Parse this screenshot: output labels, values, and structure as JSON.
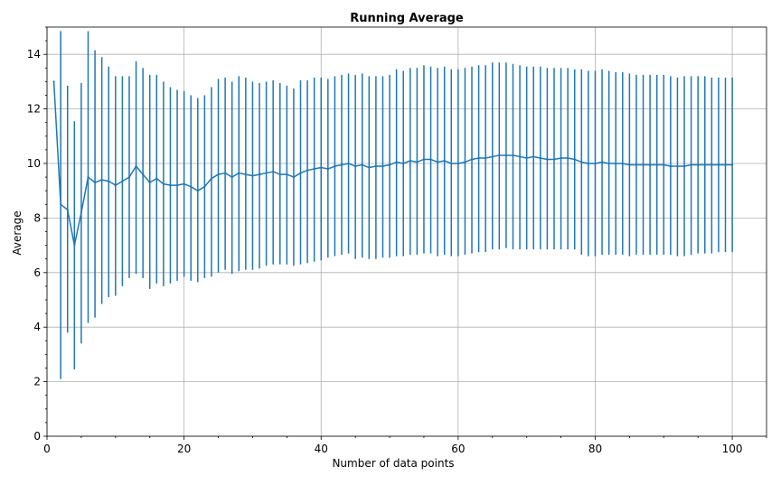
{
  "chart_data": {
    "type": "line",
    "title": "Running Average",
    "xlabel": "Number of data points",
    "ylabel": "Average",
    "xlim": [
      0,
      105
    ],
    "ylim": [
      0,
      15
    ],
    "x_ticks": [
      0,
      20,
      40,
      60,
      80,
      100
    ],
    "y_ticks": [
      0,
      2,
      4,
      6,
      8,
      10,
      12,
      14
    ],
    "x_tick_labels": [
      "0",
      "20",
      "40",
      "60",
      "80",
      "100"
    ],
    "y_tick_labels": [
      "0",
      "2",
      "4",
      "6",
      "8",
      "10",
      "12",
      "14"
    ],
    "grid": true,
    "color": "#1f77b4",
    "series": [
      {
        "x": [
          1,
          2,
          3,
          4,
          5,
          6,
          7,
          8,
          9,
          10,
          11,
          12,
          13,
          14,
          15,
          16,
          17,
          18,
          19,
          20,
          21,
          22,
          23,
          24,
          25,
          26,
          27,
          28,
          29,
          30,
          31,
          32,
          33,
          34,
          35,
          36,
          37,
          38,
          39,
          40,
          41,
          42,
          43,
          44,
          45,
          46,
          47,
          48,
          49,
          50,
          51,
          52,
          53,
          54,
          55,
          56,
          57,
          58,
          59,
          60,
          61,
          62,
          63,
          64,
          65,
          66,
          67,
          68,
          69,
          70,
          71,
          72,
          73,
          74,
          75,
          76,
          77,
          78,
          79,
          80,
          81,
          82,
          83,
          84,
          85,
          86,
          87,
          88,
          89,
          90,
          91,
          92,
          93,
          94,
          95,
          96,
          97,
          98,
          99,
          100
        ],
        "y": [
          13.0,
          8.5,
          8.3,
          7.0,
          8.2,
          9.5,
          9.3,
          9.4,
          9.35,
          9.2,
          9.35,
          9.5,
          9.9,
          9.6,
          9.3,
          9.45,
          9.25,
          9.2,
          9.2,
          9.25,
          9.15,
          9.0,
          9.15,
          9.45,
          9.6,
          9.65,
          9.5,
          9.65,
          9.6,
          9.55,
          9.6,
          9.65,
          9.7,
          9.6,
          9.6,
          9.5,
          9.65,
          9.75,
          9.8,
          9.85,
          9.8,
          9.9,
          9.95,
          10.0,
          9.9,
          9.95,
          9.85,
          9.9,
          9.9,
          9.95,
          10.05,
          10.0,
          10.1,
          10.05,
          10.15,
          10.15,
          10.05,
          10.1,
          10.0,
          10.0,
          10.05,
          10.15,
          10.2,
          10.2,
          10.25,
          10.3,
          10.3,
          10.3,
          10.25,
          10.2,
          10.25,
          10.2,
          10.15,
          10.15,
          10.2,
          10.2,
          10.15,
          10.05,
          10.0,
          10.0,
          10.05,
          10.0,
          10.0,
          10.0,
          9.95,
          9.95,
          9.95,
          9.95,
          9.95,
          9.95,
          9.9,
          9.9,
          9.9,
          9.95,
          9.95,
          9.95,
          9.95,
          9.95,
          9.95,
          9.95
        ],
        "yerr_lower": [
          null,
          2.1,
          3.8,
          2.45,
          3.4,
          4.15,
          4.35,
          4.85,
          5.1,
          5.15,
          5.5,
          5.8,
          5.95,
          5.8,
          5.4,
          5.6,
          5.5,
          5.6,
          5.7,
          5.85,
          5.7,
          5.65,
          5.8,
          5.85,
          6.0,
          6.1,
          5.95,
          6.05,
          6.1,
          6.1,
          6.15,
          6.25,
          6.3,
          6.3,
          6.3,
          6.25,
          6.3,
          6.35,
          6.4,
          6.45,
          6.55,
          6.6,
          6.65,
          6.7,
          6.5,
          6.55,
          6.5,
          6.5,
          6.55,
          6.55,
          6.6,
          6.6,
          6.65,
          6.65,
          6.7,
          6.7,
          6.6,
          6.65,
          6.6,
          6.6,
          6.65,
          6.7,
          6.75,
          6.75,
          6.85,
          6.85,
          6.9,
          6.85,
          6.85,
          6.85,
          6.85,
          6.85,
          6.85,
          6.85,
          6.85,
          6.85,
          6.85,
          6.65,
          6.6,
          6.6,
          6.65,
          6.65,
          6.65,
          6.65,
          6.6,
          6.65,
          6.65,
          6.65,
          6.65,
          6.65,
          6.65,
          6.6,
          6.6,
          6.65,
          6.7,
          6.7,
          6.7,
          6.75,
          6.75,
          6.75
        ],
        "yerr_upper": [
          null,
          14.85,
          12.85,
          11.55,
          12.95,
          14.85,
          14.15,
          13.9,
          13.55,
          13.2,
          13.2,
          13.2,
          13.75,
          13.5,
          13.25,
          13.25,
          13.0,
          12.8,
          12.7,
          12.65,
          12.5,
          12.4,
          12.5,
          12.8,
          13.1,
          13.15,
          13.0,
          13.2,
          13.15,
          13.0,
          12.95,
          13.0,
          13.05,
          12.95,
          12.85,
          12.75,
          13.05,
          13.05,
          13.15,
          13.15,
          13.1,
          13.2,
          13.25,
          13.3,
          13.25,
          13.3,
          13.2,
          13.2,
          13.2,
          13.25,
          13.45,
          13.4,
          13.5,
          13.5,
          13.6,
          13.55,
          13.5,
          13.55,
          13.45,
          13.45,
          13.5,
          13.55,
          13.6,
          13.6,
          13.7,
          13.7,
          13.7,
          13.65,
          13.6,
          13.55,
          13.55,
          13.55,
          13.5,
          13.5,
          13.5,
          13.5,
          13.45,
          13.45,
          13.4,
          13.4,
          13.45,
          13.4,
          13.35,
          13.35,
          13.3,
          13.25,
          13.25,
          13.25,
          13.25,
          13.25,
          13.2,
          13.15,
          13.2,
          13.2,
          13.2,
          13.2,
          13.15,
          13.15,
          13.15,
          13.15
        ]
      }
    ]
  }
}
